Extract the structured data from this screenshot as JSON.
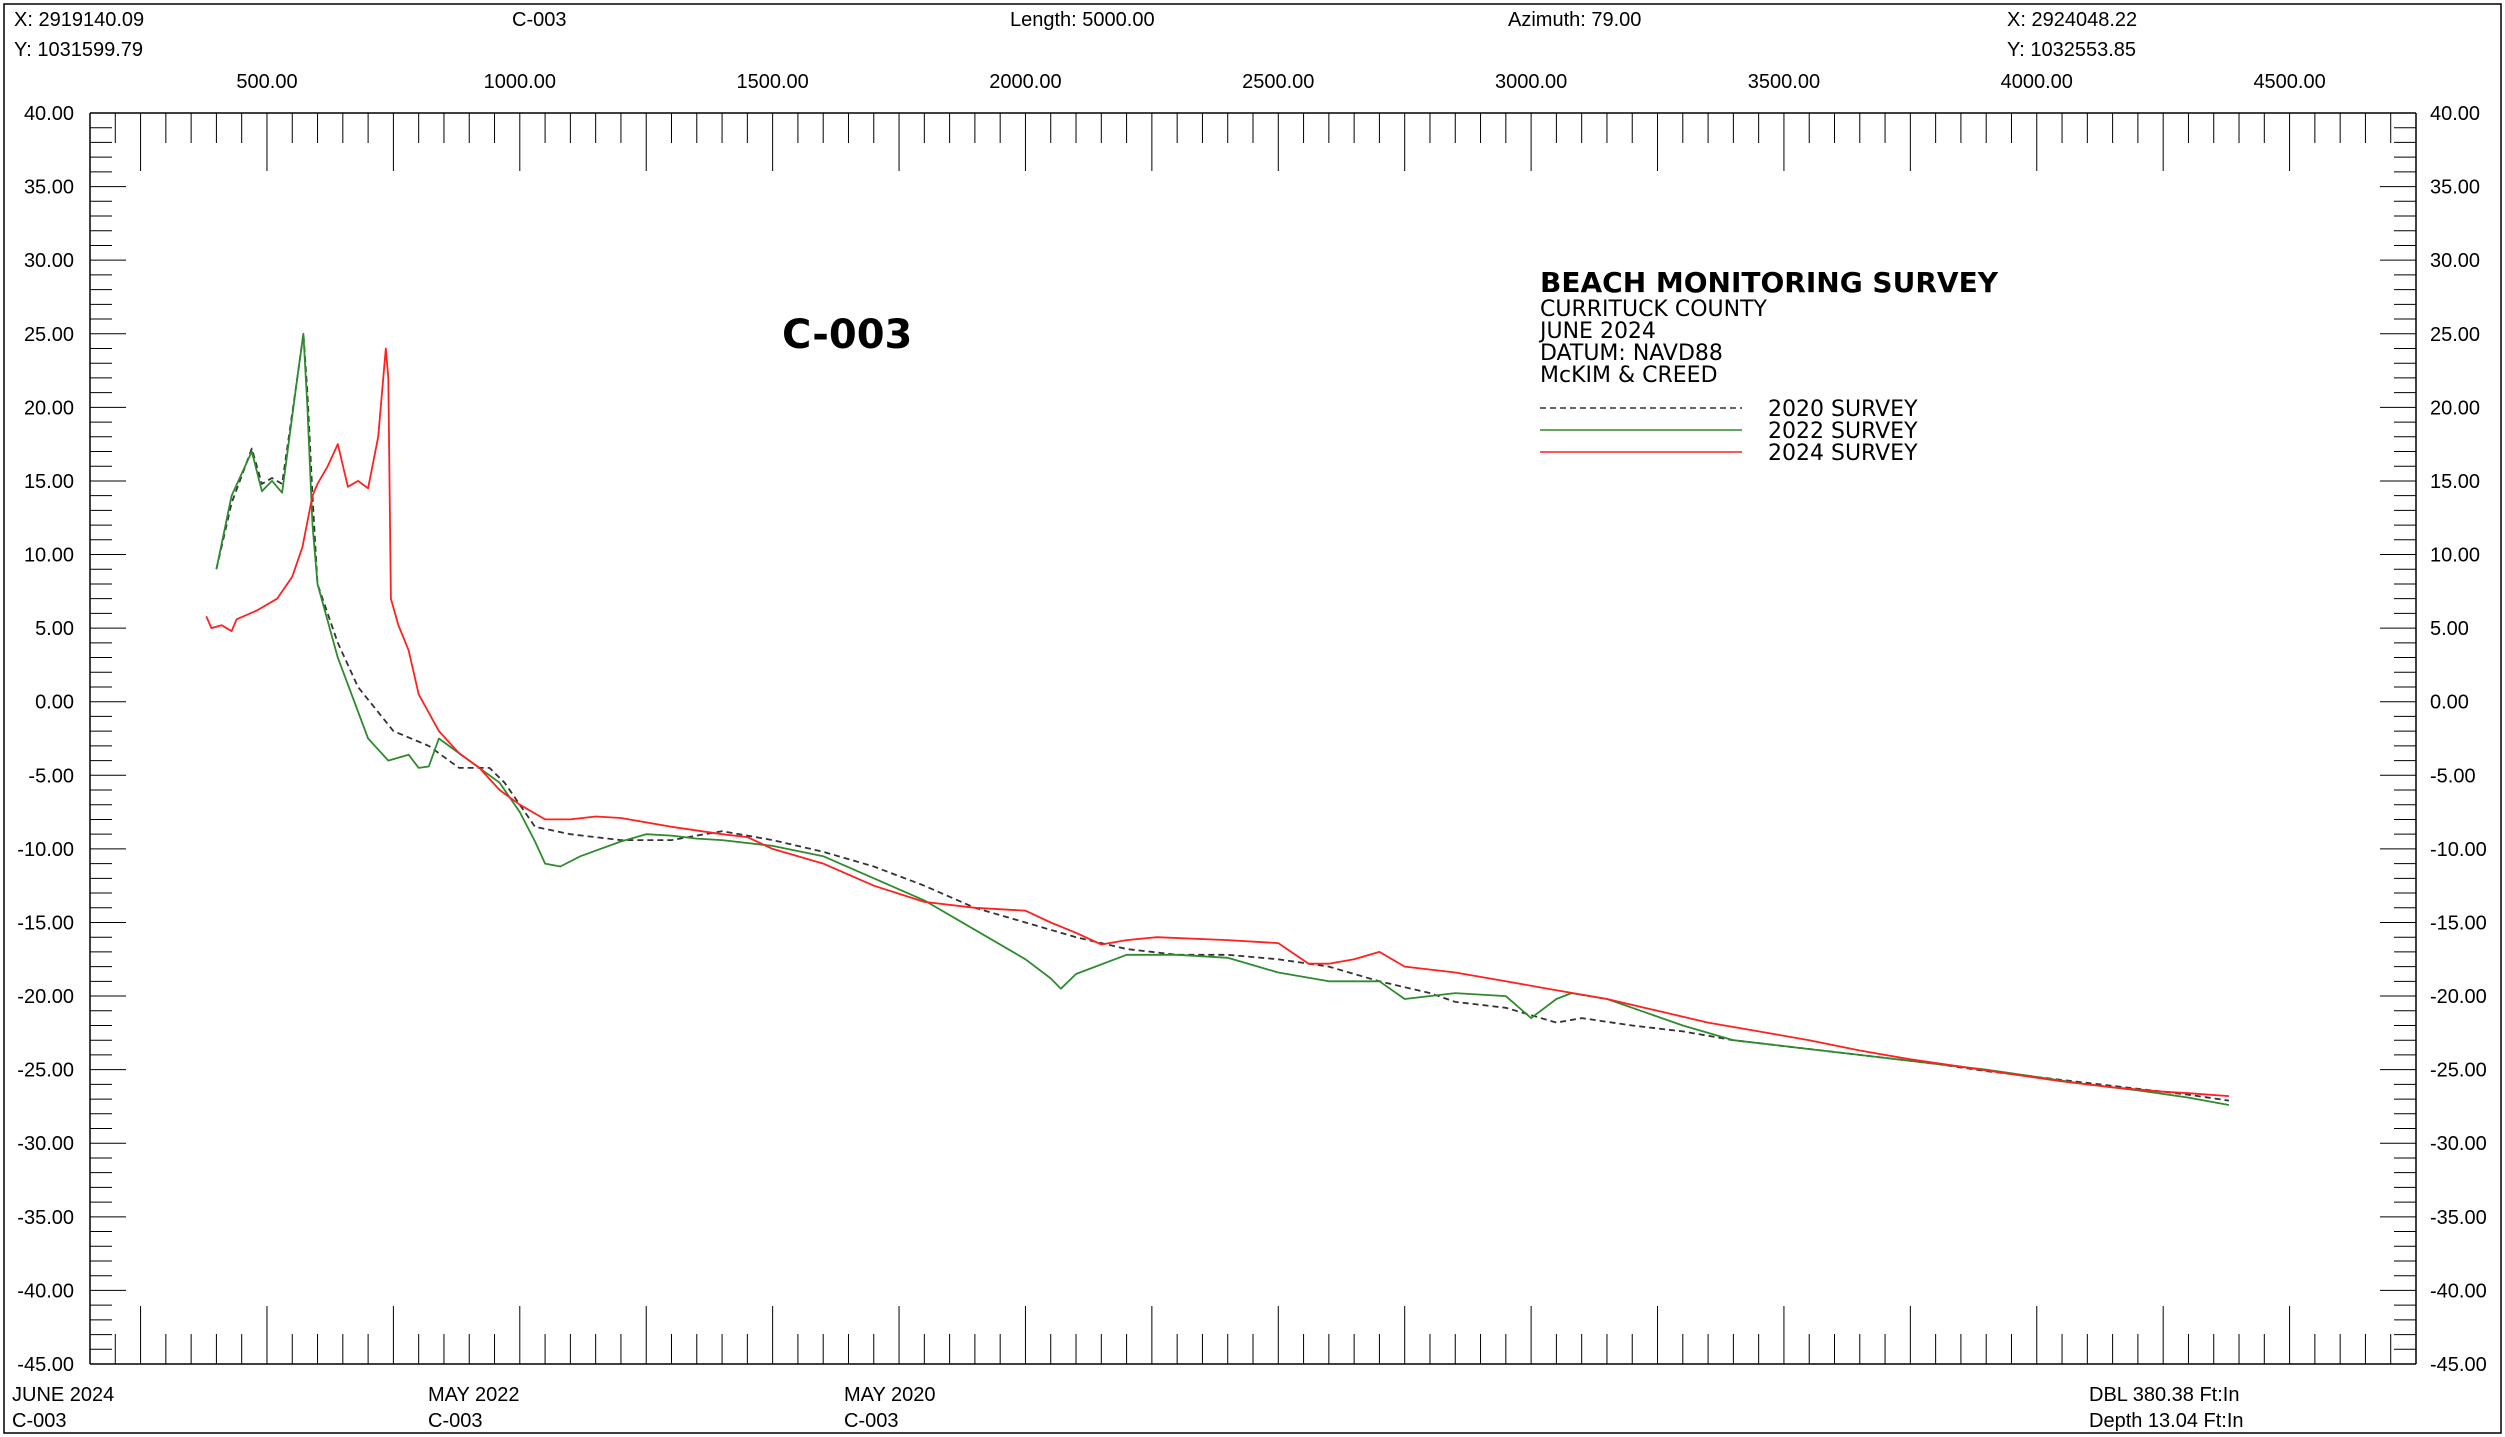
{
  "header": {
    "x_left": "X: 2919140.09",
    "y_left": "Y: 1031599.79",
    "profile_name": "C-003",
    "length": "Length: 5000.00",
    "azimuth": "Azimuth: 79.00",
    "x_right": "X: 2924048.22",
    "y_right": "Y: 1032553.85"
  },
  "footer": {
    "survey1_date": "JUNE 2024",
    "survey1_profile": "C-003",
    "survey2_date": "MAY 2022",
    "survey2_profile": "C-003",
    "survey3_date": "MAY 2020",
    "survey3_profile": "C-003",
    "scale": "DBL 380.38 Ft:In",
    "depth": "Depth 13.04 Ft:In"
  },
  "colors": {
    "survey_2020": "#333333",
    "survey_2022": "#2e8b2e",
    "survey_2024": "#ff2020",
    "footer_2024": "#ff0000",
    "footer_2022": "#2e8b2e"
  },
  "chart_data": {
    "type": "line",
    "title": "C-003",
    "legend_title": "BEACH MONITORING SURVEY",
    "legend_lines": [
      "CURRITUCK COUNTY",
      "JUNE 2024",
      "DATUM: NAVD88",
      "McKIM & CREED"
    ],
    "legend_position": "top-right",
    "xlim": [
      150,
      4750
    ],
    "ylim": [
      -45,
      40
    ],
    "x_ticks": [
      500,
      1000,
      1500,
      2000,
      2500,
      3000,
      3500,
      4000,
      4500
    ],
    "x_tick_labels": [
      "500.00",
      "1000.00",
      "1500.00",
      "2000.00",
      "2500.00",
      "3000.00",
      "3500.00",
      "4000.00",
      "4500.00"
    ],
    "y_ticks": [
      40,
      35,
      30,
      25,
      20,
      15,
      10,
      5,
      0,
      -5,
      -10,
      -15,
      -20,
      -25,
      -30,
      -35,
      -40,
      -45
    ],
    "y_tick_labels": [
      "40.00",
      "35.00",
      "30.00",
      "25.00",
      "20.00",
      "15.00",
      "10.00",
      "5.00",
      "0.00",
      "-5.00",
      "-10.00",
      "-15.00",
      "-20.00",
      "-25.00",
      "-30.00",
      "-35.00",
      "-40.00",
      "-45.00"
    ],
    "grid": false,
    "series": [
      {
        "name": "2020 SURVEY",
        "style": "dashed",
        "points": [
          [
            400,
            9
          ],
          [
            430,
            13.5
          ],
          [
            470,
            17.2
          ],
          [
            490,
            14.8
          ],
          [
            510,
            15.2
          ],
          [
            530,
            14.8
          ],
          [
            560,
            22
          ],
          [
            572,
            25
          ],
          [
            580,
            21
          ],
          [
            590,
            14
          ],
          [
            600,
            8
          ],
          [
            640,
            4
          ],
          [
            680,
            1
          ],
          [
            750,
            -2
          ],
          [
            820,
            -3
          ],
          [
            880,
            -4.5
          ],
          [
            940,
            -4.5
          ],
          [
            970,
            -5.5
          ],
          [
            1000,
            -7
          ],
          [
            1030,
            -8.5
          ],
          [
            1100,
            -9
          ],
          [
            1200,
            -9.4
          ],
          [
            1300,
            -9.4
          ],
          [
            1350,
            -9.1
          ],
          [
            1400,
            -8.8
          ],
          [
            1500,
            -9.4
          ],
          [
            1600,
            -10.2
          ],
          [
            1700,
            -11.2
          ],
          [
            1800,
            -12.5
          ],
          [
            1900,
            -14
          ],
          [
            2000,
            -15
          ],
          [
            2100,
            -16
          ],
          [
            2200,
            -16.8
          ],
          [
            2300,
            -17.2
          ],
          [
            2400,
            -17.2
          ],
          [
            2500,
            -17.5
          ],
          [
            2600,
            -18
          ],
          [
            2700,
            -19
          ],
          [
            2800,
            -19.8
          ],
          [
            2850,
            -20.4
          ],
          [
            2950,
            -20.8
          ],
          [
            3050,
            -21.8
          ],
          [
            3100,
            -21.5
          ],
          [
            3200,
            -22
          ],
          [
            3300,
            -22.4
          ],
          [
            3400,
            -23
          ],
          [
            3500,
            -23.4
          ],
          [
            3600,
            -23.8
          ],
          [
            3700,
            -24.2
          ],
          [
            3800,
            -24.6
          ],
          [
            3900,
            -25.1
          ],
          [
            4000,
            -25.5
          ],
          [
            4100,
            -25.9
          ],
          [
            4200,
            -26.3
          ],
          [
            4300,
            -26.7
          ],
          [
            4380,
            -27.1
          ]
        ]
      },
      {
        "name": "2022 SURVEY",
        "style": "solid",
        "points": [
          [
            400,
            9
          ],
          [
            430,
            14
          ],
          [
            470,
            17
          ],
          [
            490,
            14.3
          ],
          [
            510,
            15
          ],
          [
            530,
            14.2
          ],
          [
            560,
            22
          ],
          [
            572,
            25
          ],
          [
            580,
            20
          ],
          [
            590,
            12
          ],
          [
            600,
            8
          ],
          [
            640,
            3
          ],
          [
            700,
            -2.5
          ],
          [
            740,
            -4
          ],
          [
            780,
            -3.6
          ],
          [
            800,
            -4.5
          ],
          [
            820,
            -4.4
          ],
          [
            840,
            -2.5
          ],
          [
            900,
            -4
          ],
          [
            960,
            -5.5
          ],
          [
            1000,
            -7.5
          ],
          [
            1030,
            -9.5
          ],
          [
            1050,
            -11
          ],
          [
            1080,
            -11.2
          ],
          [
            1120,
            -10.5
          ],
          [
            1200,
            -9.5
          ],
          [
            1250,
            -9
          ],
          [
            1300,
            -9.1
          ],
          [
            1350,
            -9.3
          ],
          [
            1400,
            -9.4
          ],
          [
            1500,
            -9.8
          ],
          [
            1600,
            -10.5
          ],
          [
            1700,
            -12
          ],
          [
            1800,
            -13.5
          ],
          [
            1900,
            -15.5
          ],
          [
            2000,
            -17.5
          ],
          [
            2050,
            -18.8
          ],
          [
            2070,
            -19.5
          ],
          [
            2100,
            -18.5
          ],
          [
            2200,
            -17.2
          ],
          [
            2300,
            -17.2
          ],
          [
            2400,
            -17.4
          ],
          [
            2500,
            -18.4
          ],
          [
            2600,
            -19
          ],
          [
            2700,
            -19
          ],
          [
            2750,
            -20.2
          ],
          [
            2850,
            -19.8
          ],
          [
            2950,
            -20
          ],
          [
            3000,
            -21.5
          ],
          [
            3050,
            -20.2
          ],
          [
            3080,
            -19.8
          ],
          [
            3150,
            -20.2
          ],
          [
            3200,
            -20.8
          ],
          [
            3300,
            -22
          ],
          [
            3400,
            -23
          ],
          [
            3500,
            -23.4
          ],
          [
            3600,
            -23.8
          ],
          [
            3700,
            -24.2
          ],
          [
            3800,
            -24.6
          ],
          [
            3900,
            -25
          ],
          [
            4000,
            -25.5
          ],
          [
            4100,
            -26
          ],
          [
            4200,
            -26.4
          ],
          [
            4300,
            -26.9
          ],
          [
            4380,
            -27.4
          ]
        ]
      },
      {
        "name": "2024 SURVEY",
        "style": "solid",
        "points": [
          [
            380,
            5.8
          ],
          [
            390,
            5
          ],
          [
            410,
            5.2
          ],
          [
            430,
            4.8
          ],
          [
            440,
            5.6
          ],
          [
            480,
            6.2
          ],
          [
            520,
            7
          ],
          [
            550,
            8.5
          ],
          [
            570,
            10.5
          ],
          [
            590,
            14
          ],
          [
            600,
            14.8
          ],
          [
            620,
            16
          ],
          [
            640,
            17.5
          ],
          [
            660,
            14.6
          ],
          [
            680,
            15
          ],
          [
            700,
            14.5
          ],
          [
            720,
            18
          ],
          [
            735,
            24
          ],
          [
            740,
            22
          ],
          [
            745,
            7
          ],
          [
            760,
            5.2
          ],
          [
            780,
            3.5
          ],
          [
            800,
            0.5
          ],
          [
            840,
            -2
          ],
          [
            880,
            -3.5
          ],
          [
            920,
            -4.5
          ],
          [
            960,
            -6
          ],
          [
            1000,
            -7
          ],
          [
            1050,
            -8
          ],
          [
            1100,
            -8
          ],
          [
            1150,
            -7.8
          ],
          [
            1200,
            -7.9
          ],
          [
            1300,
            -8.5
          ],
          [
            1400,
            -9
          ],
          [
            1450,
            -9.2
          ],
          [
            1500,
            -10
          ],
          [
            1600,
            -11
          ],
          [
            1700,
            -12.5
          ],
          [
            1800,
            -13.6
          ],
          [
            1900,
            -14
          ],
          [
            2000,
            -14.2
          ],
          [
            2050,
            -15
          ],
          [
            2100,
            -15.7
          ],
          [
            2150,
            -16.5
          ],
          [
            2200,
            -16.2
          ],
          [
            2260,
            -16
          ],
          [
            2400,
            -16.2
          ],
          [
            2500,
            -16.4
          ],
          [
            2560,
            -17.8
          ],
          [
            2600,
            -17.8
          ],
          [
            2650,
            -17.5
          ],
          [
            2700,
            -17
          ],
          [
            2750,
            -18
          ],
          [
            2850,
            -18.4
          ],
          [
            2950,
            -19
          ],
          [
            3050,
            -19.6
          ],
          [
            3150,
            -20.2
          ],
          [
            3250,
            -21
          ],
          [
            3350,
            -21.8
          ],
          [
            3450,
            -22.4
          ],
          [
            3550,
            -23
          ],
          [
            3650,
            -23.7
          ],
          [
            3750,
            -24.3
          ],
          [
            3850,
            -24.8
          ],
          [
            3950,
            -25.3
          ],
          [
            4050,
            -25.8
          ],
          [
            4150,
            -26.2
          ],
          [
            4250,
            -26.5
          ],
          [
            4300,
            -26.6
          ],
          [
            4380,
            -26.8
          ]
        ]
      }
    ]
  }
}
